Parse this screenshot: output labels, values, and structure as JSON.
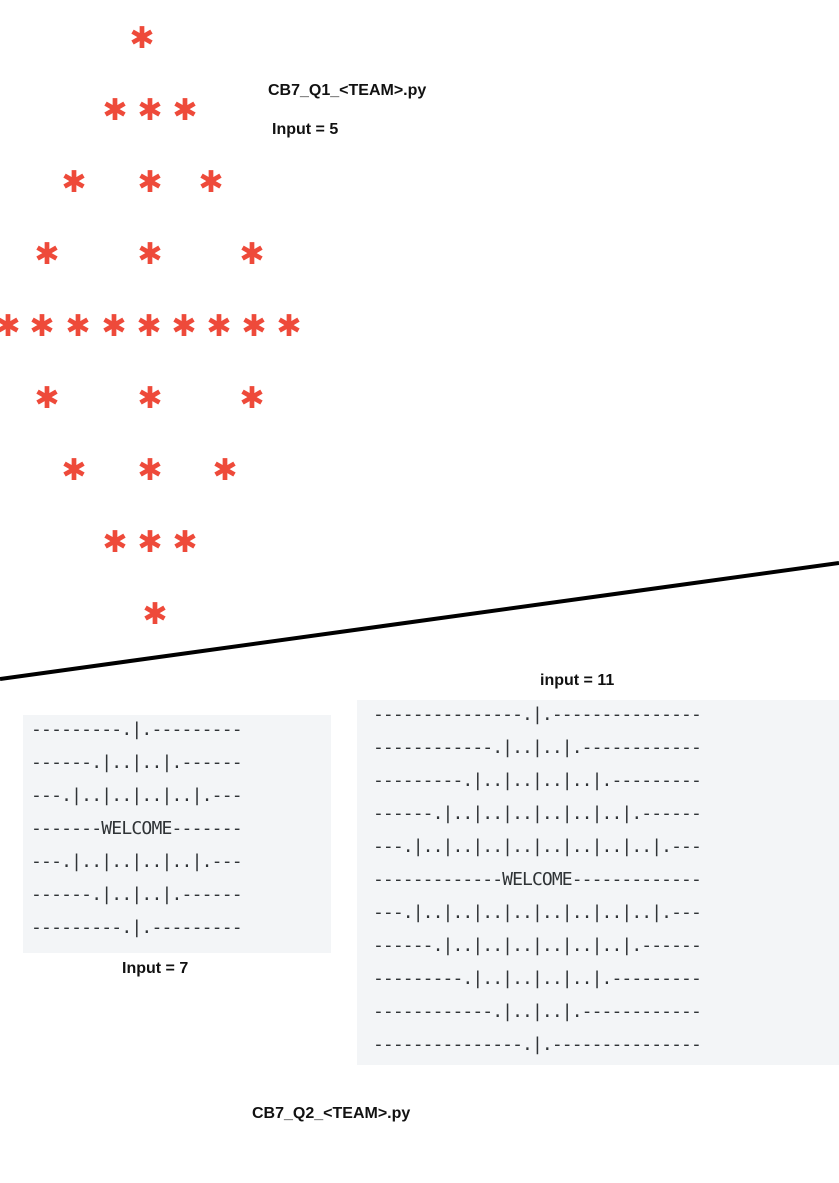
{
  "star_pattern": {
    "glyph": "✱",
    "color": "#ee4a3a",
    "rows": [
      {
        "row": 1,
        "count": 1
      },
      {
        "row": 2,
        "count": 3
      },
      {
        "row": 3,
        "count": 3
      },
      {
        "row": 4,
        "count": 3
      },
      {
        "row": 5,
        "count": 9
      },
      {
        "row": 6,
        "count": 3
      },
      {
        "row": 7,
        "count": 3
      },
      {
        "row": 8,
        "count": 3
      },
      {
        "row": 9,
        "count": 1
      }
    ]
  },
  "q1": {
    "filename": "CB7_Q1_<TEAM>.py",
    "input_label": "Input = 5"
  },
  "q2": {
    "filename": "CB7_Q2_<TEAM>.py",
    "example_small": {
      "input_label": "Input = 7",
      "lines": [
        "---------.|.---------",
        "------.|..|..|.------",
        "---.|..|..|..|..|.---",
        "-------WELCOME-------",
        "---.|..|..|..|..|.---",
        "------.|..|..|.------",
        "---------.|.---------"
      ]
    },
    "example_large": {
      "input_label": "input = 11",
      "lines": [
        "---------------.|.---------------",
        "------------.|..|..|.------------",
        "---------.|..|..|..|..|.---------",
        "------.|..|..|..|..|..|..|.------",
        "---.|..|..|..|..|..|..|..|..|.---",
        "-------------WELCOME-------------",
        "---.|..|..|..|..|..|..|..|..|.---",
        "------.|..|..|..|..|..|..|.------",
        "---------.|..|..|..|..|.---------",
        "------------.|..|..|.------------",
        "---------------.|.---------------"
      ]
    }
  }
}
